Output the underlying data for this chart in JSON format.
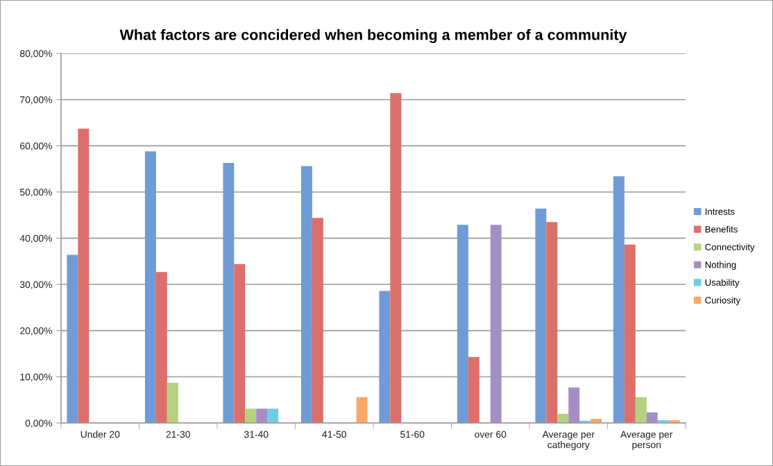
{
  "chart_data": {
    "type": "bar",
    "title": "What factors are concidered when becoming a member of a community",
    "categories": [
      "Under 20",
      "21-30",
      "31-40",
      "41-50",
      "51-60",
      "over 60",
      "Average per cathegory",
      "Average per person"
    ],
    "series": [
      {
        "name": "Intrests",
        "color": "#6f9bd6",
        "values": [
          36.4,
          58.8,
          56.3,
          55.6,
          28.6,
          42.9,
          46.4,
          53.4
        ]
      },
      {
        "name": "Benefits",
        "color": "#dc6f69",
        "values": [
          63.7,
          32.7,
          34.4,
          44.4,
          71.4,
          14.3,
          43.5,
          38.6
        ]
      },
      {
        "name": "Connectivity",
        "color": "#b5d27f",
        "values": [
          null,
          8.7,
          3.1,
          null,
          null,
          null,
          2.0,
          5.6
        ]
      },
      {
        "name": "Nothing",
        "color": "#a58ec4",
        "values": [
          null,
          null,
          3.1,
          null,
          null,
          42.9,
          7.7,
          2.3
        ]
      },
      {
        "name": "Usability",
        "color": "#6fcde3",
        "values": [
          null,
          null,
          3.1,
          null,
          null,
          null,
          0.5,
          0.6
        ]
      },
      {
        "name": "Curiosity",
        "color": "#f9a868",
        "values": [
          null,
          null,
          null,
          5.6,
          null,
          null,
          0.9,
          0.6
        ]
      }
    ],
    "ylim": [
      0,
      80
    ],
    "yticks": [
      {
        "value": 0,
        "label": "0,00%"
      },
      {
        "value": 10,
        "label": "10,00%"
      },
      {
        "value": 20,
        "label": "20,00%"
      },
      {
        "value": 30,
        "label": "30,00%"
      },
      {
        "value": 40,
        "label": "40,00%"
      },
      {
        "value": 50,
        "label": "50,00%"
      },
      {
        "value": 60,
        "label": "60,00%"
      },
      {
        "value": 70,
        "label": "70,00%"
      },
      {
        "value": 80,
        "label": "80,00%"
      }
    ],
    "grid": "y",
    "legend": "right"
  }
}
